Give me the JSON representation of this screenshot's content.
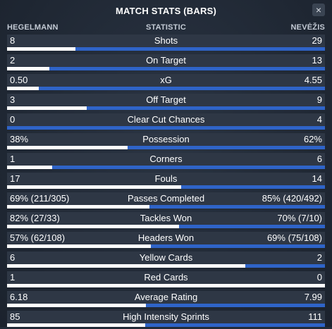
{
  "header": {
    "title": "MATCH STATS (BARS)",
    "close_glyph": "×"
  },
  "columns": {
    "left": "HEGELMANN",
    "middle": "STATISTIC",
    "right": "NEVĖŽIS"
  },
  "colors": {
    "home_bar": "#ffffff",
    "away_bar": "#2f64c8"
  },
  "stats": [
    {
      "name": "Shots",
      "left": "8",
      "right": "29",
      "home_share": 0.216
    },
    {
      "name": "On Target",
      "left": "2",
      "right": "13",
      "home_share": 0.133
    },
    {
      "name": "xG",
      "left": "0.50",
      "right": "4.55",
      "home_share": 0.099
    },
    {
      "name": "Off Target",
      "left": "3",
      "right": "9",
      "home_share": 0.25
    },
    {
      "name": "Clear Cut Chances",
      "left": "0",
      "right": "4",
      "home_share": 0.0
    },
    {
      "name": "Possession",
      "left": "38%",
      "right": "62%",
      "home_share": 0.38
    },
    {
      "name": "Corners",
      "left": "1",
      "right": "6",
      "home_share": 0.143
    },
    {
      "name": "Fouls",
      "left": "17",
      "right": "14",
      "home_share": 0.548
    },
    {
      "name": "Passes Completed",
      "left": "69% (211/305)",
      "right": "85% (420/492)",
      "home_share": 0.448
    },
    {
      "name": "Tackles Won",
      "left": "82% (27/33)",
      "right": "70% (7/10)",
      "home_share": 0.54
    },
    {
      "name": "Headers Won",
      "left": "57% (62/108)",
      "right": "69% (75/108)",
      "home_share": 0.452
    },
    {
      "name": "Yellow Cards",
      "left": "6",
      "right": "2",
      "home_share": 0.75
    },
    {
      "name": "Red Cards",
      "left": "1",
      "right": "0",
      "home_share": 1.0
    },
    {
      "name": "Average Rating",
      "left": "6.18",
      "right": "7.99",
      "home_share": 0.436
    },
    {
      "name": "High Intensity Sprints",
      "left": "85",
      "right": "111",
      "home_share": 0.434
    }
  ]
}
